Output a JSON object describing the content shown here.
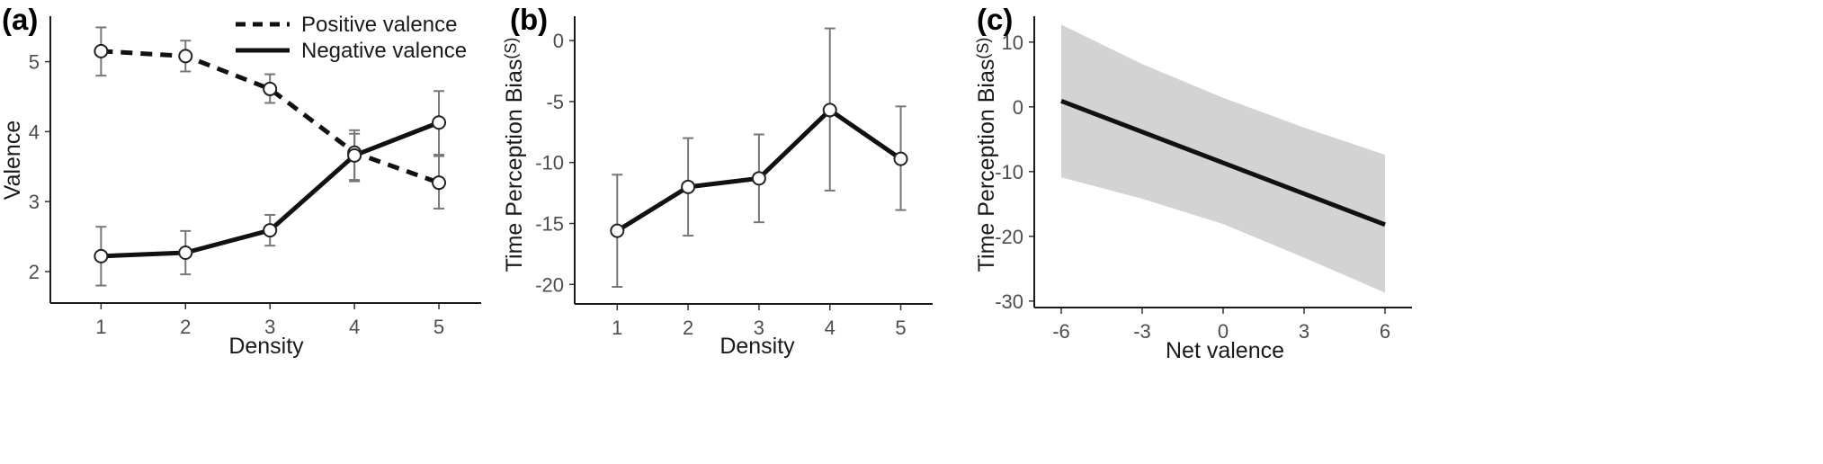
{
  "chart_data": [
    {
      "panel": "(a)",
      "type": "line",
      "xlabel": "Density",
      "ylabel": "Valence",
      "x": [
        1,
        2,
        3,
        4,
        5
      ],
      "xlim": [
        0.4,
        5.5
      ],
      "ylim": [
        1.55,
        5.65
      ],
      "yticks": [
        2,
        3,
        4,
        5
      ],
      "xticks": [
        1,
        2,
        3,
        4,
        5
      ],
      "legend_position": "top-right",
      "series": [
        {
          "name": "Positive valence",
          "style": "dashed",
          "values": [
            5.15,
            5.08,
            4.61,
            3.7,
            3.27
          ],
          "err_low": [
            4.8,
            4.86,
            4.41,
            3.31,
            2.9
          ],
          "err_high": [
            5.49,
            5.3,
            4.82,
            3.97,
            3.65
          ]
        },
        {
          "name": "Negative valence",
          "style": "solid",
          "values": [
            2.22,
            2.27,
            2.59,
            3.66,
            4.13
          ],
          "err_low": [
            1.8,
            1.96,
            2.37,
            3.29,
            3.67
          ],
          "err_high": [
            2.64,
            2.58,
            2.81,
            4.02,
            4.58
          ]
        }
      ]
    },
    {
      "panel": "(b)",
      "type": "line",
      "xlabel": "Density",
      "ylabel": "Time Perception Bias",
      "yunit": "(S)",
      "x": [
        1,
        2,
        3,
        4,
        5
      ],
      "xlim": [
        0.4,
        5.45
      ],
      "ylim": [
        -21.6,
        2.0
      ],
      "yticks": [
        -20,
        -15,
        -10,
        -5,
        0
      ],
      "xticks": [
        1,
        2,
        3,
        4,
        5
      ],
      "series": [
        {
          "style": "solid",
          "values": [
            -15.6,
            -12.0,
            -11.3,
            -5.7,
            -9.7
          ],
          "err_low": [
            -20.2,
            -16.0,
            -14.9,
            -12.3,
            -13.9
          ],
          "err_high": [
            -11.0,
            -8.0,
            -7.7,
            1.0,
            -5.4
          ]
        }
      ]
    },
    {
      "panel": "(c)",
      "type": "area",
      "xlabel": "Net valence",
      "ylabel": "Time Perception Bias",
      "yunit": "(S)",
      "xlim": [
        -7.0,
        7.0
      ],
      "ylim": [
        -31.0,
        14.0
      ],
      "xticks": [
        -6,
        -3,
        0,
        3,
        6
      ],
      "yticks": [
        -30,
        -20,
        -10,
        0,
        10
      ],
      "fit_line": {
        "x": [
          -6,
          6
        ],
        "y": [
          0.9,
          -18.2
        ]
      },
      "band": {
        "x": [
          -6,
          -3,
          0,
          3,
          6
        ],
        "upper": [
          12.7,
          6.6,
          1.4,
          -3.2,
          -7.4
        ],
        "lower": [
          -10.9,
          -14.2,
          -18.1,
          -23.3,
          -28.7
        ]
      }
    }
  ],
  "colors": {
    "line": "#111111",
    "errorbar": "#777777",
    "band": "#d3d3d3",
    "marker_fill": "#ffffff"
  }
}
